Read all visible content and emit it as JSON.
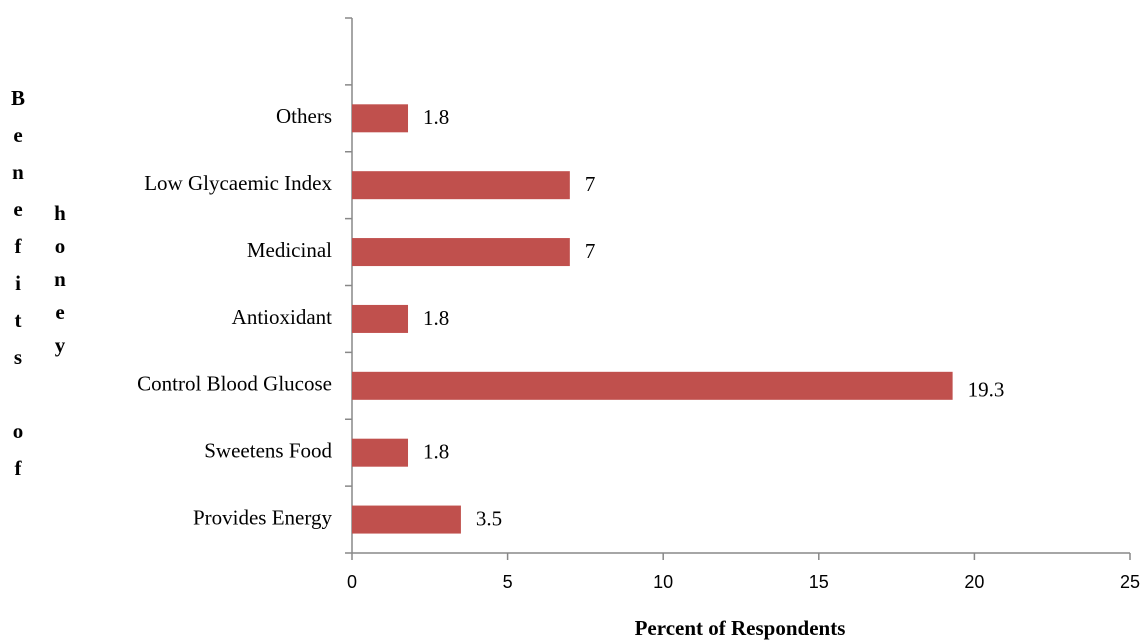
{
  "chart_data": {
    "type": "barh",
    "categories": [
      "Provides Energy",
      "Sweetens Food",
      "Control Blood Glucose",
      "Antioxidant",
      "Medicinal",
      "Low Glycaemic Index",
      "Others",
      null
    ],
    "values": [
      3.5,
      1.8,
      19.3,
      1.8,
      7,
      7,
      1.8,
      null
    ],
    "color": "#c0504d",
    "xlabel": "Percent of Respondents",
    "ylabel": "Benefits of honey",
    "xlim": [
      0,
      25
    ],
    "xticks": [
      0,
      5,
      10,
      15,
      20,
      25
    ],
    "grid": false
  }
}
